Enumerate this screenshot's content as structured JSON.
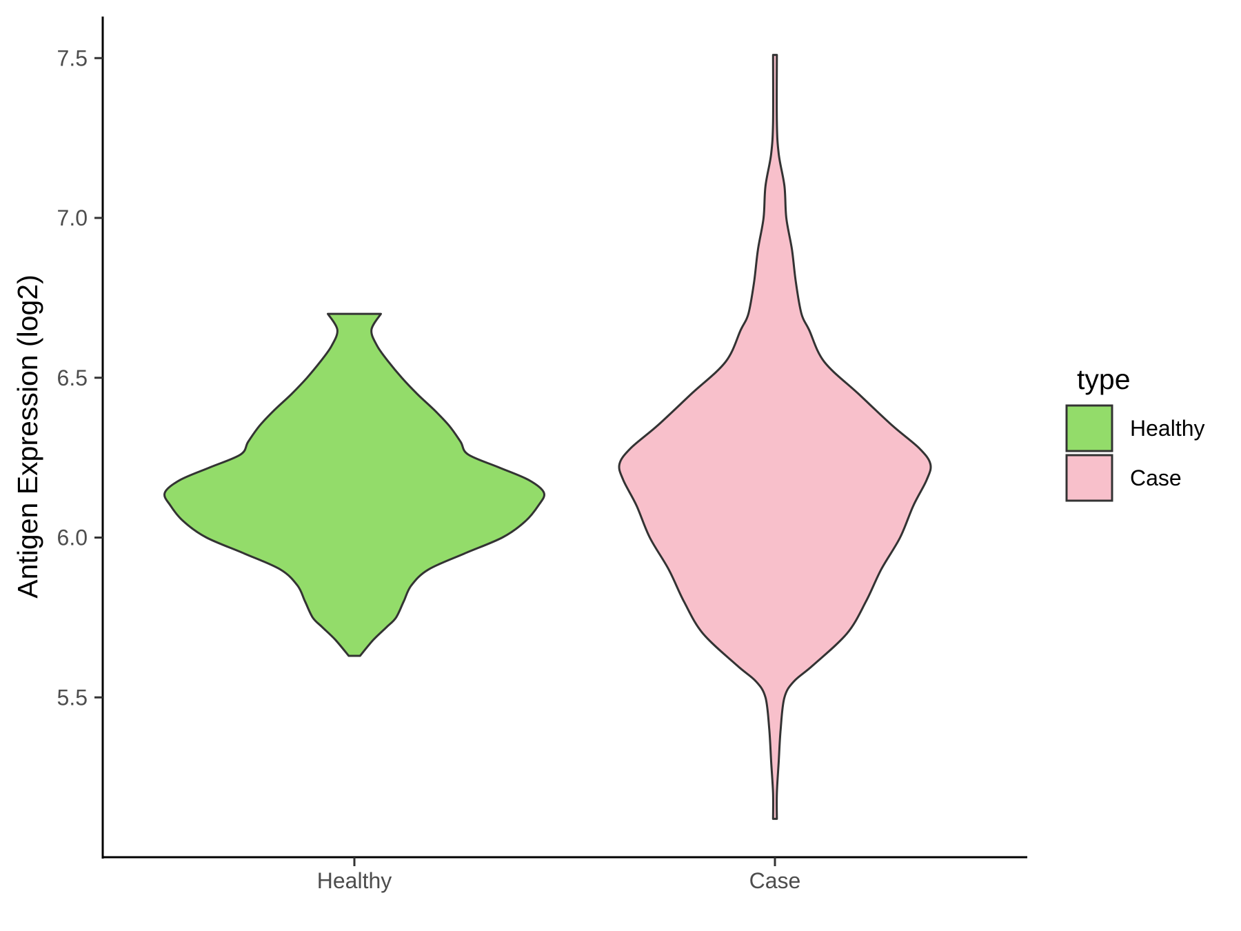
{
  "chart_data": {
    "type": "violin",
    "ylabel": "Antigen Expression (log2)",
    "xlabel": "",
    "categories": [
      "Healthy",
      "Case"
    ],
    "ylim": [
      5.0,
      7.63
    ],
    "yticks": [
      5.5,
      6.0,
      6.5,
      7.0,
      7.5
    ],
    "ytick_labels": [
      "5.5",
      "6.0",
      "6.5",
      "7.0",
      "7.5"
    ],
    "grid": false,
    "legend": {
      "title": "type",
      "position": "right",
      "entries": [
        {
          "label": "Healthy",
          "color": "#93dc6a"
        },
        {
          "label": "Case",
          "color": "#f8c0cb"
        }
      ]
    },
    "series": [
      {
        "category": "Healthy",
        "color": "#93dc6a",
        "y_range": [
          5.63,
          6.7
        ],
        "density_profile": [
          [
            5.63,
            0.03
          ],
          [
            5.68,
            0.1
          ],
          [
            5.72,
            0.17
          ],
          [
            5.75,
            0.22
          ],
          [
            5.8,
            0.26
          ],
          [
            5.85,
            0.3
          ],
          [
            5.9,
            0.39
          ],
          [
            5.95,
            0.58
          ],
          [
            6.0,
            0.78
          ],
          [
            6.05,
            0.9
          ],
          [
            6.1,
            0.97
          ],
          [
            6.14,
            1.0
          ],
          [
            6.18,
            0.92
          ],
          [
            6.22,
            0.76
          ],
          [
            6.26,
            0.6
          ],
          [
            6.3,
            0.56
          ],
          [
            6.35,
            0.5
          ],
          [
            6.4,
            0.42
          ],
          [
            6.45,
            0.33
          ],
          [
            6.5,
            0.25
          ],
          [
            6.55,
            0.18
          ],
          [
            6.6,
            0.12
          ],
          [
            6.65,
            0.09
          ],
          [
            6.7,
            0.14
          ]
        ]
      },
      {
        "category": "Case",
        "color": "#f8c0cb",
        "y_range": [
          5.12,
          7.51
        ],
        "density_profile": [
          [
            5.12,
            0.01
          ],
          [
            5.2,
            0.01
          ],
          [
            5.3,
            0.02
          ],
          [
            5.4,
            0.03
          ],
          [
            5.5,
            0.05
          ],
          [
            5.55,
            0.1
          ],
          [
            5.6,
            0.2
          ],
          [
            5.7,
            0.38
          ],
          [
            5.8,
            0.48
          ],
          [
            5.9,
            0.56
          ],
          [
            6.0,
            0.66
          ],
          [
            6.1,
            0.73
          ],
          [
            6.18,
            0.8
          ],
          [
            6.23,
            0.82
          ],
          [
            6.28,
            0.76
          ],
          [
            6.35,
            0.62
          ],
          [
            6.45,
            0.44
          ],
          [
            6.55,
            0.26
          ],
          [
            6.65,
            0.18
          ],
          [
            6.7,
            0.14
          ],
          [
            6.8,
            0.11
          ],
          [
            6.9,
            0.09
          ],
          [
            7.0,
            0.06
          ],
          [
            7.1,
            0.05
          ],
          [
            7.2,
            0.02
          ],
          [
            7.3,
            0.01
          ],
          [
            7.51,
            0.01
          ]
        ]
      }
    ]
  }
}
